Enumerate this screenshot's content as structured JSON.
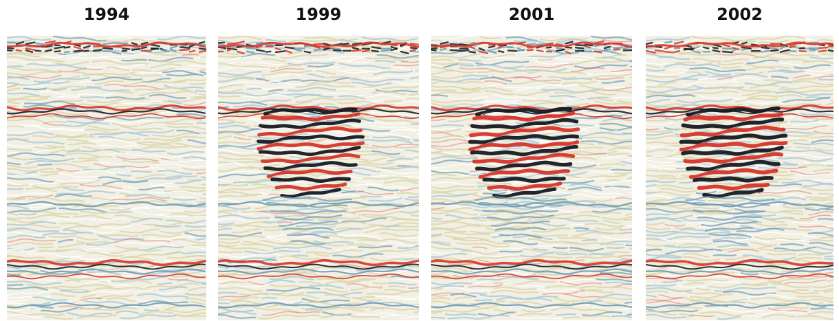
{
  "panels": [
    {
      "id": "p0",
      "year": "1994",
      "anomaly": 0.0
    },
    {
      "id": "p1",
      "year": "1999",
      "anomaly": 0.75
    },
    {
      "id": "p2",
      "year": "2001",
      "anomaly": 0.9
    },
    {
      "id": "p3",
      "year": "2002",
      "anomaly": 1.0
    }
  ],
  "colors": {
    "background": "#f2f0e4",
    "beige": "#d8d3a8",
    "light_blue": "#a9c9d6",
    "blue": "#6f9bb4",
    "red": "#d6352a",
    "black": "#141a22",
    "white": "#ffffff"
  }
}
